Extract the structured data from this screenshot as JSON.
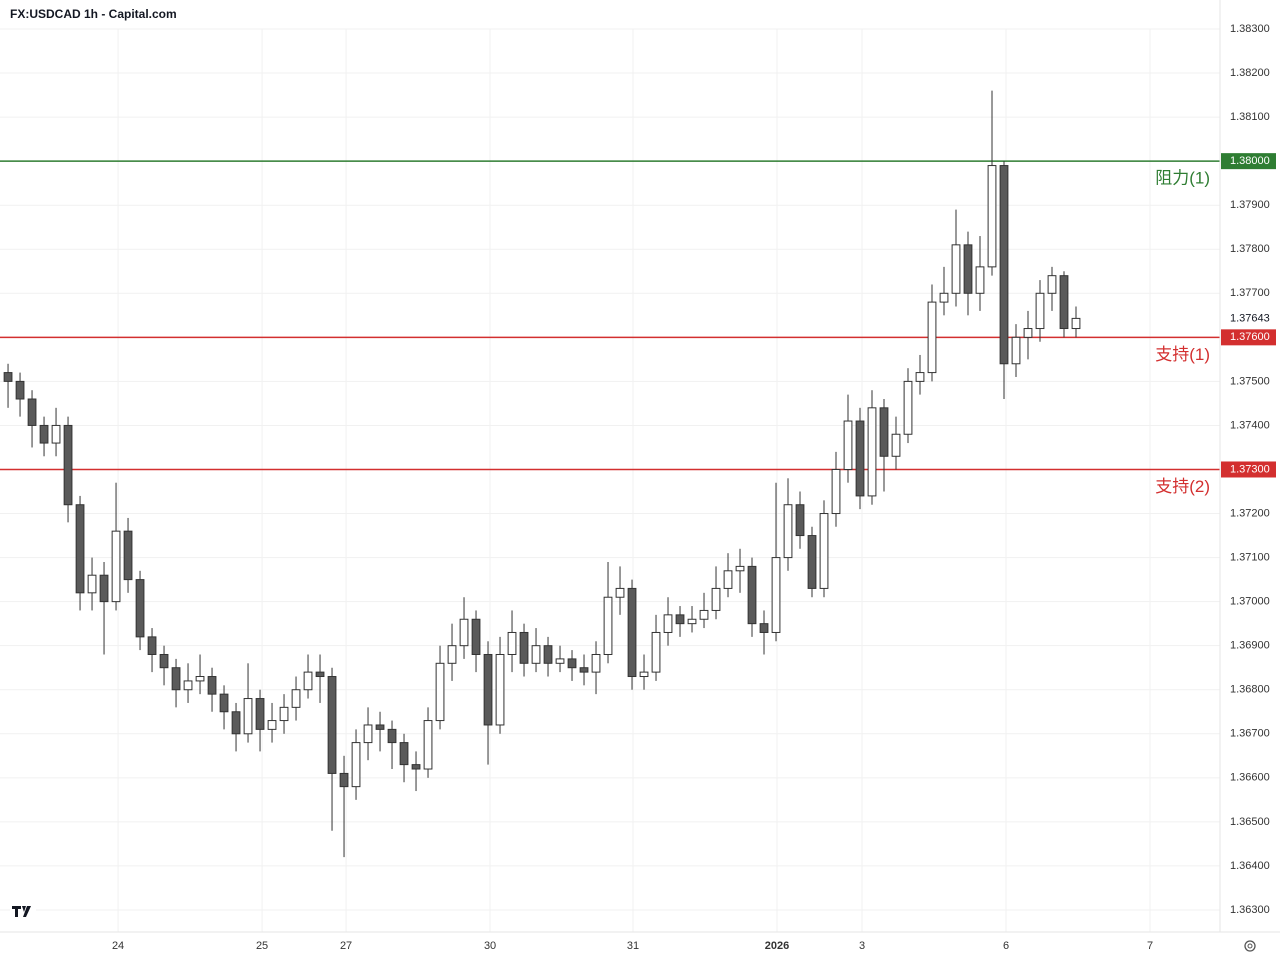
{
  "chart_data": {
    "type": "candlestick",
    "title": "FX:USDCAD 1h - Capital.com",
    "ylim": [
      1.3625,
      1.383
    ],
    "xlim": [
      -0.67,
      101
    ],
    "yticks": [
      {
        "value": 1.363,
        "label": "1.36300"
      },
      {
        "value": 1.364,
        "label": "1.36400"
      },
      {
        "value": 1.365,
        "label": "1.36500"
      },
      {
        "value": 1.366,
        "label": "1.36600"
      },
      {
        "value": 1.367,
        "label": "1.36700"
      },
      {
        "value": 1.368,
        "label": "1.36800"
      },
      {
        "value": 1.369,
        "label": "1.36900"
      },
      {
        "value": 1.37,
        "label": "1.37000"
      },
      {
        "value": 1.371,
        "label": "1.37100"
      },
      {
        "value": 1.372,
        "label": "1.37200"
      },
      {
        "value": 1.373,
        "label": "1.37300"
      },
      {
        "value": 1.374,
        "label": "1.37400"
      },
      {
        "value": 1.375,
        "label": "1.37500"
      },
      {
        "value": 1.376,
        "label": "1.37600"
      },
      {
        "value": 1.377,
        "label": "1.37700"
      },
      {
        "value": 1.378,
        "label": "1.37800"
      },
      {
        "value": 1.379,
        "label": "1.37900"
      },
      {
        "value": 1.38,
        "label": "1.38000"
      },
      {
        "value": 1.381,
        "label": "1.38100"
      },
      {
        "value": 1.382,
        "label": "1.38200"
      },
      {
        "value": 1.383,
        "label": "1.38300"
      }
    ],
    "xticks": [
      {
        "value": 9.17,
        "label": "24"
      },
      {
        "value": 21.17,
        "label": "25"
      },
      {
        "value": 28.17,
        "label": "27"
      },
      {
        "value": 40.17,
        "label": "30"
      },
      {
        "value": 52.08,
        "label": "31"
      },
      {
        "value": 64.08,
        "label": "2026"
      },
      {
        "value": 71.17,
        "label": "3"
      },
      {
        "value": 83.17,
        "label": "6"
      },
      {
        "value": 95.17,
        "label": "7"
      }
    ],
    "grid": true,
    "up_color": "#ffffff",
    "down_color": "#5a5a5a",
    "edge_color": "#333333",
    "open": [
      1.3752,
      1.375,
      1.3746,
      1.374,
      1.3736,
      1.374,
      1.3722,
      1.3702,
      1.3706,
      1.37,
      1.3716,
      1.3705,
      1.3692,
      1.3688,
      1.3685,
      1.368,
      1.3682,
      1.3683,
      1.3679,
      1.3675,
      1.367,
      1.3678,
      1.3671,
      1.3673,
      1.3676,
      1.368,
      1.3684,
      1.3683,
      1.3661,
      1.3658,
      1.3668,
      1.3672,
      1.3671,
      1.3668,
      1.3663,
      1.3662,
      1.3673,
      1.3686,
      1.369,
      1.3696,
      1.3688,
      1.3672,
      1.3688,
      1.3693,
      1.3686,
      1.369,
      1.3686,
      1.3687,
      1.3685,
      1.3684,
      1.3688,
      1.3701,
      1.3703,
      1.3683,
      1.3684,
      1.3693,
      1.3697,
      1.3695,
      1.3696,
      1.3698,
      1.3703,
      1.3707,
      1.3708,
      1.3695,
      1.3693,
      1.371,
      1.3722,
      1.3715,
      1.3703,
      1.372,
      1.373,
      1.3741,
      1.3724,
      1.3744,
      1.3733,
      1.3738,
      1.375,
      1.3752,
      1.3768,
      1.377,
      1.3781,
      1.377,
      1.3776,
      1.3799,
      1.3754,
      1.376,
      1.3762,
      1.377,
      1.3774,
      1.3762
    ],
    "high": [
      1.3754,
      1.3752,
      1.3748,
      1.3742,
      1.3744,
      1.3742,
      1.3724,
      1.371,
      1.3709,
      1.3727,
      1.3719,
      1.3707,
      1.3694,
      1.369,
      1.3687,
      1.3686,
      1.3688,
      1.3685,
      1.3681,
      1.3677,
      1.3686,
      1.368,
      1.3677,
      1.3679,
      1.3683,
      1.3688,
      1.3688,
      1.3685,
      1.3665,
      1.3671,
      1.3676,
      1.3675,
      1.3673,
      1.367,
      1.3666,
      1.3676,
      1.369,
      1.3695,
      1.3701,
      1.3698,
      1.3691,
      1.3692,
      1.3698,
      1.3695,
      1.3694,
      1.3692,
      1.369,
      1.3689,
      1.3688,
      1.3691,
      1.3709,
      1.3708,
      1.3705,
      1.3688,
      1.3697,
      1.3701,
      1.3699,
      1.3699,
      1.3702,
      1.3708,
      1.3711,
      1.3712,
      1.371,
      1.3698,
      1.3727,
      1.3728,
      1.3725,
      1.3717,
      1.3723,
      1.3734,
      1.3747,
      1.3744,
      1.3748,
      1.3746,
      1.3742,
      1.3753,
      1.3756,
      1.3772,
      1.3776,
      1.3789,
      1.3784,
      1.3783,
      1.3816,
      1.38,
      1.3763,
      1.3766,
      1.3773,
      1.3776,
      1.3775,
      1.3767
    ],
    "low": [
      1.3744,
      1.3742,
      1.3735,
      1.3733,
      1.3733,
      1.3718,
      1.3698,
      1.3698,
      1.3688,
      1.3698,
      1.3702,
      1.3689,
      1.3684,
      1.3681,
      1.3676,
      1.3677,
      1.3679,
      1.3675,
      1.3671,
      1.3666,
      1.3668,
      1.3666,
      1.3668,
      1.367,
      1.3673,
      1.3678,
      1.3677,
      1.3648,
      1.3642,
      1.3655,
      1.3664,
      1.3666,
      1.3662,
      1.3659,
      1.3657,
      1.366,
      1.3671,
      1.3682,
      1.3687,
      1.3684,
      1.3663,
      1.367,
      1.3684,
      1.3683,
      1.3684,
      1.3683,
      1.3684,
      1.3682,
      1.3681,
      1.3679,
      1.3686,
      1.3697,
      1.368,
      1.368,
      1.3682,
      1.369,
      1.3692,
      1.3693,
      1.3694,
      1.3696,
      1.3701,
      1.3702,
      1.3692,
      1.3688,
      1.3691,
      1.3707,
      1.3712,
      1.3701,
      1.3701,
      1.3717,
      1.3727,
      1.3721,
      1.3722,
      1.3725,
      1.373,
      1.3736,
      1.3747,
      1.375,
      1.3765,
      1.3767,
      1.3765,
      1.3766,
      1.3774,
      1.3746,
      1.3751,
      1.3755,
      1.3759,
      1.3766,
      1.376,
      1.376
    ],
    "close": [
      1.375,
      1.3746,
      1.374,
      1.3736,
      1.374,
      1.3722,
      1.3702,
      1.3706,
      1.37,
      1.3716,
      1.3705,
      1.3692,
      1.3688,
      1.3685,
      1.368,
      1.3682,
      1.3683,
      1.3679,
      1.3675,
      1.367,
      1.3678,
      1.3671,
      1.3673,
      1.3676,
      1.368,
      1.3684,
      1.3683,
      1.3661,
      1.3658,
      1.3668,
      1.3672,
      1.3671,
      1.3668,
      1.3663,
      1.3662,
      1.3673,
      1.3686,
      1.369,
      1.3696,
      1.3688,
      1.3672,
      1.3688,
      1.3693,
      1.3686,
      1.369,
      1.3686,
      1.3687,
      1.3685,
      1.3684,
      1.3688,
      1.3701,
      1.3703,
      1.3683,
      1.3684,
      1.3693,
      1.3697,
      1.3695,
      1.3696,
      1.3698,
      1.3703,
      1.3707,
      1.3708,
      1.3695,
      1.3693,
      1.371,
      1.3722,
      1.3715,
      1.3703,
      1.372,
      1.373,
      1.3741,
      1.3724,
      1.3744,
      1.3733,
      1.3738,
      1.375,
      1.3752,
      1.3768,
      1.377,
      1.3781,
      1.377,
      1.3776,
      1.3799,
      1.3754,
      1.376,
      1.3762,
      1.377,
      1.3774,
      1.3762,
      1.37643
    ],
    "last_price": {
      "value": 1.37643,
      "label": "1.37643"
    },
    "levels": [
      {
        "name": "阻力(1)",
        "value": 1.38,
        "label": "1.38000",
        "color": "#2e7d32"
      },
      {
        "name": "支持(1)",
        "value": 1.376,
        "label": "1.37600",
        "color": "#d32f2f"
      },
      {
        "name": "支持(2)",
        "value": 1.373,
        "label": "1.37300",
        "color": "#d32f2f"
      }
    ]
  }
}
